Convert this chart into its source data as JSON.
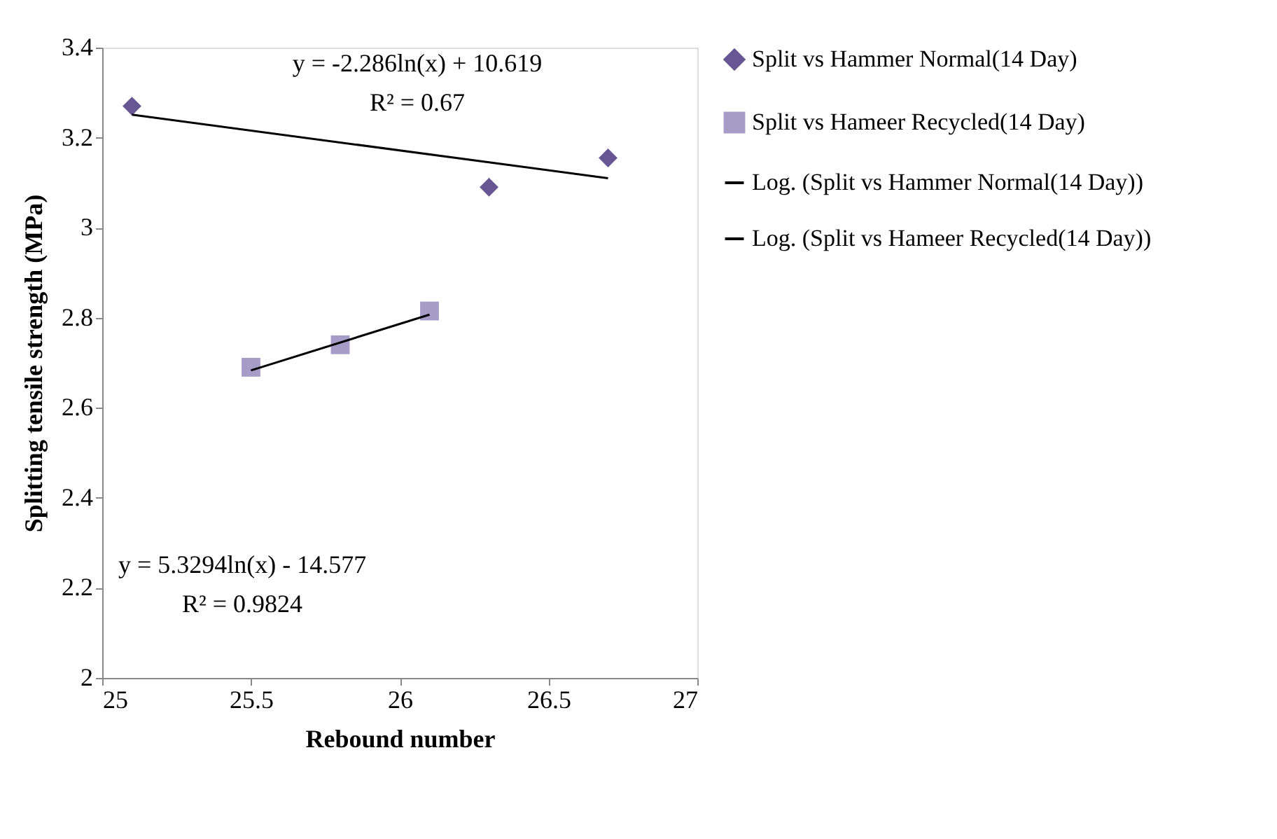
{
  "chart_data": {
    "type": "scatter",
    "xlabel": "Rebound number",
    "ylabel": "Splitting tensile strength (MPa)",
    "xlim": [
      25,
      27
    ],
    "xticks": [
      25,
      25.5,
      26,
      26.5,
      27
    ],
    "ylim": [
      2,
      3.4
    ],
    "yticks": [
      2,
      2.2,
      2.4,
      2.6,
      2.8,
      3,
      3.2,
      3.4
    ],
    "grid": false,
    "legend": "right",
    "series": [
      {
        "name": "Split vs Hammer Normal(14 Day)",
        "marker": "diamond",
        "color": "#675594",
        "x": [
          25.1,
          26.3,
          26.7
        ],
        "values": [
          3.27,
          3.09,
          3.155
        ]
      },
      {
        "name": "Split vs Hameer Recycled(14 Day)",
        "marker": "square",
        "color": "#a69cc8",
        "x": [
          25.5,
          25.8,
          26.1
        ],
        "values": [
          2.69,
          2.74,
          2.815
        ]
      },
      {
        "name": "Log. (Split vs Hammer Normal(14 Day))",
        "type": "line",
        "marker": "none",
        "color": "#000000",
        "x": [
          25.1,
          26.7
        ],
        "values": [
          3.251,
          3.11
        ]
      },
      {
        "name": "Log. (Split vs Hameer Recycled(14 Day))",
        "type": "line",
        "marker": "none",
        "color": "#000000",
        "x": [
          25.5,
          26.1
        ],
        "values": [
          2.683,
          2.807
        ]
      }
    ],
    "annotations": [
      "y = -2.286ln(x) + 10.619",
      "R² = 0.67",
      "y = 5.3294ln(x) - 14.577",
      "R² = 0.9824"
    ]
  }
}
